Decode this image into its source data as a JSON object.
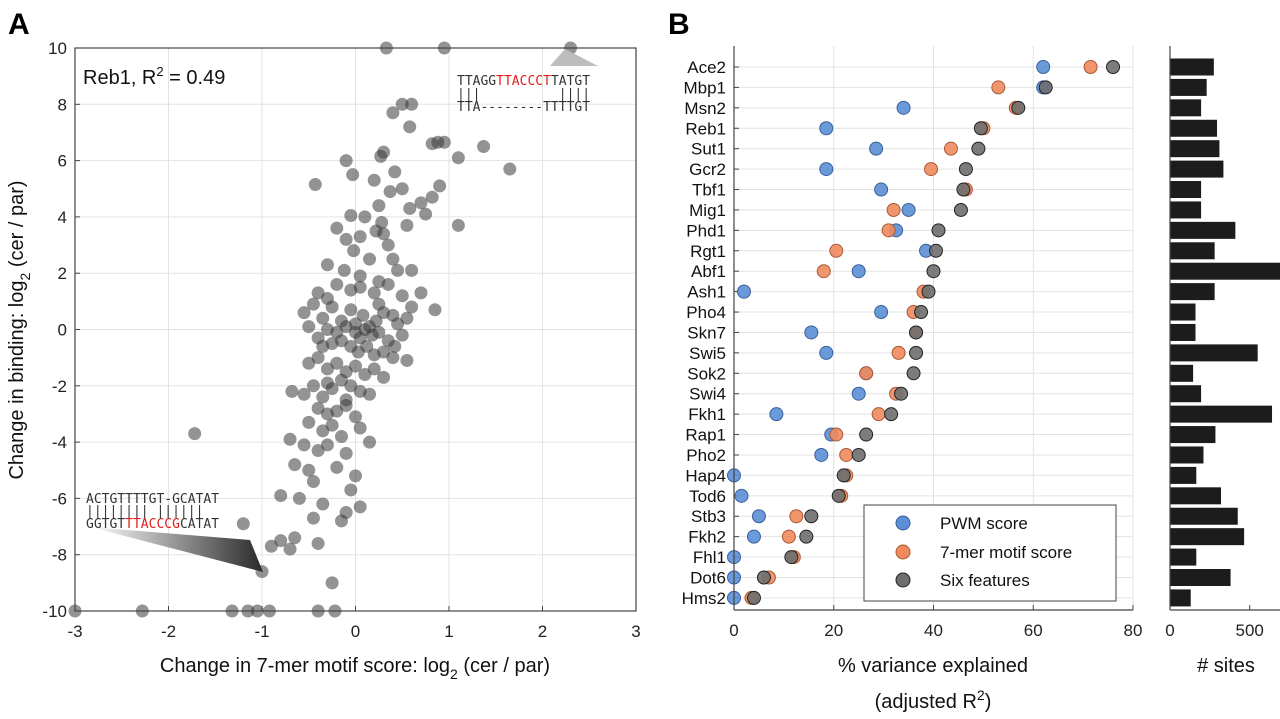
{
  "panels": {
    "a": "A",
    "b": "B"
  },
  "chart_data": [
    {
      "type": "scatter",
      "xlabel": "Change in 7-mer motif score: log",
      "xlabel_sub": "2",
      "xlabel_tail": " (cer / par)",
      "ylabel": "Change in binding: log",
      "ylabel_sub": "2",
      "ylabel_tail": " (cer / par)",
      "xlim": [
        -3,
        3
      ],
      "ylim": [
        -10,
        10
      ],
      "xticks": [
        "-3",
        "-2",
        "-1",
        "0",
        "1",
        "2",
        "3"
      ],
      "yticks": [
        "10",
        "8",
        "6",
        "4",
        "2",
        "0",
        "-2",
        "-4",
        "-6",
        "-8",
        "-10"
      ],
      "grid": true,
      "annotation": {
        "label": "Reb1, R",
        "sup": "2",
        "value": " = 0.49"
      },
      "seq_top": {
        "line1a": "TTAGG",
        "line1b": "TTACCCT",
        "line1c": "TATGT",
        "bars": "|||          ||||",
        "line2": "TTA--------TTTTGT"
      },
      "seq_bottom": {
        "line1": "ACTGTTTTGT-GCATAT",
        "bars": "|||||||| ||||||",
        "line2a": "GGTGT",
        "line2b": "TTACCCG",
        "line2c": "CATAT"
      },
      "points": [
        [
          0.33,
          10
        ],
        [
          0.95,
          10
        ],
        [
          2.3,
          10
        ],
        [
          0.5,
          8
        ],
        [
          0.6,
          8
        ],
        [
          0.4,
          7.7
        ],
        [
          0.58,
          7.2
        ],
        [
          0.88,
          6.65
        ],
        [
          0.95,
          6.65
        ],
        [
          1.37,
          6.5
        ],
        [
          0.82,
          6.6
        ],
        [
          0.3,
          6.3
        ],
        [
          0.27,
          6.15
        ],
        [
          -0.1,
          6
        ],
        [
          1.1,
          6.1
        ],
        [
          1.65,
          5.7
        ],
        [
          -0.03,
          5.5
        ],
        [
          0.42,
          5.6
        ],
        [
          0.2,
          5.3
        ],
        [
          -0.43,
          5.15
        ],
        [
          0.9,
          5.1
        ],
        [
          0.5,
          5
        ],
        [
          0.82,
          4.7
        ],
        [
          0.7,
          4.5
        ],
        [
          0.58,
          4.3
        ],
        [
          0.37,
          4.9
        ],
        [
          0.25,
          4.4
        ],
        [
          0.1,
          4
        ],
        [
          -0.05,
          4.05
        ],
        [
          0.28,
          3.8
        ],
        [
          0.55,
          3.7
        ],
        [
          0.22,
          3.5
        ],
        [
          0.05,
          3.3
        ],
        [
          -0.1,
          3.2
        ],
        [
          -0.02,
          2.8
        ],
        [
          0.35,
          3
        ],
        [
          0.4,
          2.5
        ],
        [
          0.6,
          2.1
        ],
        [
          1.1,
          3.7
        ],
        [
          0.75,
          4.1
        ],
        [
          -0.2,
          3.6
        ],
        [
          0.3,
          3.4
        ],
        [
          -0.3,
          2.3
        ],
        [
          -0.12,
          2.1
        ],
        [
          0.05,
          1.9
        ],
        [
          0.15,
          2.5
        ],
        [
          0.25,
          1.7
        ],
        [
          0.45,
          2.1
        ],
        [
          -0.4,
          1.3
        ],
        [
          -0.3,
          1.1
        ],
        [
          -0.2,
          1.6
        ],
        [
          -0.05,
          1.4
        ],
        [
          0.05,
          1.5
        ],
        [
          0.2,
          1.3
        ],
        [
          0.35,
          1.6
        ],
        [
          0.5,
          1.2
        ],
        [
          0.7,
          1.3
        ],
        [
          0.85,
          0.7
        ],
        [
          0.6,
          0.8
        ],
        [
          0.4,
          0.5
        ],
        [
          0.25,
          0.9
        ],
        [
          -0.45,
          0.9
        ],
        [
          -0.35,
          0.4
        ],
        [
          -0.25,
          0.8
        ],
        [
          -0.15,
          0.3
        ],
        [
          -0.05,
          0.7
        ],
        [
          0,
          0.2
        ],
        [
          0.08,
          0.5
        ],
        [
          0.15,
          0.1
        ],
        [
          0.22,
          0.3
        ],
        [
          0.3,
          0.6
        ],
        [
          0.45,
          0.2
        ],
        [
          0.55,
          0.4
        ],
        [
          0.5,
          -0.2
        ],
        [
          -0.55,
          0.6
        ],
        [
          -0.5,
          0.1
        ],
        [
          -0.4,
          -0.3
        ],
        [
          -0.3,
          0
        ],
        [
          -0.2,
          -0.1
        ],
        [
          -0.1,
          0.1
        ],
        [
          0,
          -0.1
        ],
        [
          0.05,
          -0.3
        ],
        [
          0.1,
          0
        ],
        [
          0.18,
          -0.2
        ],
        [
          0.25,
          -0.1
        ],
        [
          0.35,
          -0.4
        ],
        [
          0.42,
          -0.6
        ],
        [
          -0.35,
          -0.6
        ],
        [
          -0.25,
          -0.5
        ],
        [
          -0.15,
          -0.4
        ],
        [
          -0.05,
          -0.6
        ],
        [
          0.03,
          -0.8
        ],
        [
          0.12,
          -0.6
        ],
        [
          0.2,
          -0.9
        ],
        [
          0.3,
          -0.8
        ],
        [
          0.4,
          -1
        ],
        [
          0.55,
          -1.1
        ],
        [
          -0.5,
          -1.2
        ],
        [
          -0.4,
          -1
        ],
        [
          -0.3,
          -1.4
        ],
        [
          -0.2,
          -1.2
        ],
        [
          -0.1,
          -1.5
        ],
        [
          0,
          -1.3
        ],
        [
          0.1,
          -1.6
        ],
        [
          0.2,
          -1.4
        ],
        [
          0.3,
          -1.7
        ],
        [
          -0.15,
          -1.8
        ],
        [
          -0.3,
          -1.9
        ],
        [
          -0.05,
          -2
        ],
        [
          0.05,
          -2.2
        ],
        [
          -0.45,
          -2
        ],
        [
          -0.35,
          -2.4
        ],
        [
          -0.25,
          -2.1
        ],
        [
          -0.1,
          -2.5
        ],
        [
          0.15,
          -2.3
        ],
        [
          -0.68,
          -2.2
        ],
        [
          -0.55,
          -2.3
        ],
        [
          -0.4,
          -2.8
        ],
        [
          -0.3,
          -3
        ],
        [
          -0.2,
          -2.9
        ],
        [
          -0.1,
          -2.7
        ],
        [
          0,
          -3.1
        ],
        [
          -0.5,
          -3.3
        ],
        [
          -0.35,
          -3.6
        ],
        [
          -0.25,
          -3.4
        ],
        [
          -0.15,
          -3.8
        ],
        [
          0.05,
          -3.5
        ],
        [
          -0.7,
          -3.9
        ],
        [
          -0.55,
          -4.1
        ],
        [
          -0.4,
          -4.3
        ],
        [
          -0.3,
          -4.1
        ],
        [
          -0.1,
          -4.4
        ],
        [
          0.15,
          -4
        ],
        [
          -0.65,
          -4.8
        ],
        [
          -0.5,
          -5
        ],
        [
          -0.45,
          -5.4
        ],
        [
          -0.2,
          -4.9
        ],
        [
          0,
          -5.2
        ],
        [
          -0.05,
          -5.7
        ],
        [
          -0.8,
          -5.9
        ],
        [
          -0.6,
          -6
        ],
        [
          -0.35,
          -6.2
        ],
        [
          -0.1,
          -6.5
        ],
        [
          0.05,
          -6.3
        ],
        [
          -0.15,
          -6.8
        ],
        [
          -0.45,
          -6.7
        ],
        [
          -0.65,
          -7.4
        ],
        [
          -0.8,
          -7.5
        ],
        [
          -0.9,
          -7.7
        ],
        [
          -0.7,
          -7.8
        ],
        [
          -0.4,
          -7.6
        ],
        [
          -1.72,
          -3.7
        ],
        [
          -1.2,
          -6.9
        ],
        [
          -1.0,
          -8.6
        ],
        [
          -0.25,
          -9
        ],
        [
          -3,
          -10
        ],
        [
          -2.28,
          -10
        ],
        [
          -1.32,
          -10
        ],
        [
          -1.15,
          -10
        ],
        [
          -1.05,
          -10
        ],
        [
          -0.92,
          -10
        ],
        [
          -0.4,
          -10
        ],
        [
          -0.22,
          -10
        ]
      ]
    },
    {
      "type": "scatter",
      "xlabel": "% variance explained",
      "xlabel2": "(adjusted R",
      "xlabel2_sup": "2",
      "xlabel2_tail": ")",
      "xlim": [
        0,
        80
      ],
      "xticks": [
        "0",
        "20",
        "40",
        "60",
        "80"
      ],
      "grid": true,
      "legend_position": "bottom-right",
      "categories": [
        "Ace2",
        "Mbp1",
        "Msn2",
        "Reb1",
        "Sut1",
        "Gcr2",
        "Tbf1",
        "Mig1",
        "Phd1",
        "Rgt1",
        "Abf1",
        "Ash1",
        "Pho4",
        "Skn7",
        "Swi5",
        "Sok2",
        "Swi4",
        "Fkh1",
        "Rap1",
        "Pho2",
        "Hap4",
        "Tod6",
        "Stb3",
        "Fkh2",
        "Fhl1",
        "Dot6",
        "Hms2"
      ],
      "series": [
        {
          "name": "PWM score",
          "color": "#5b8fd6",
          "values": [
            62,
            62,
            34,
            18.5,
            28.5,
            18.5,
            29.5,
            35,
            32.5,
            38.5,
            25,
            2,
            29.5,
            15.5,
            18.5,
            26.5,
            25,
            8.5,
            19.5,
            17.5,
            0,
            1.5,
            5,
            4,
            0,
            0,
            0
          ]
        },
        {
          "name": "7-mer motif score",
          "color": "#f08a5d",
          "values": [
            71.5,
            53,
            56.5,
            50,
            43.5,
            39.5,
            46.5,
            32,
            31,
            20.5,
            18,
            38,
            36,
            36.5,
            33,
            26.5,
            32.5,
            29,
            20.5,
            22.5,
            22.5,
            21.5,
            12.5,
            11,
            12,
            7,
            3.5
          ]
        },
        {
          "name": "Six features",
          "color": "#6e6e6e",
          "values": [
            76,
            62.5,
            57,
            49.5,
            49,
            46.5,
            46,
            45.5,
            41,
            40.5,
            40,
            39,
            37.5,
            36.5,
            36.5,
            36,
            33.5,
            31.5,
            26.5,
            25,
            22,
            21,
            15.5,
            14.5,
            11.5,
            6,
            4
          ]
        }
      ]
    },
    {
      "type": "bar",
      "orientation": "horizontal",
      "xlabel": "# sites",
      "xlim": [
        0,
        690
      ],
      "xticks": [
        "0",
        "500"
      ],
      "categories": [
        "Ace2",
        "Mbp1",
        "Msn2",
        "Reb1",
        "Sut1",
        "Gcr2",
        "Tbf1",
        "Mig1",
        "Phd1",
        "Rgt1",
        "Abf1",
        "Ash1",
        "Pho4",
        "Skn7",
        "Swi5",
        "Sok2",
        "Swi4",
        "Fkh1",
        "Rap1",
        "Pho2",
        "Hap4",
        "Tod6",
        "Stb3",
        "Fkh2",
        "Fhl1",
        "Dot6",
        "Hms2"
      ],
      "values": [
        275,
        230,
        195,
        295,
        310,
        335,
        195,
        195,
        410,
        280,
        690,
        280,
        160,
        160,
        550,
        145,
        195,
        640,
        285,
        210,
        165,
        320,
        425,
        465,
        165,
        380,
        130
      ],
      "color": "#1c1c1c"
    }
  ]
}
